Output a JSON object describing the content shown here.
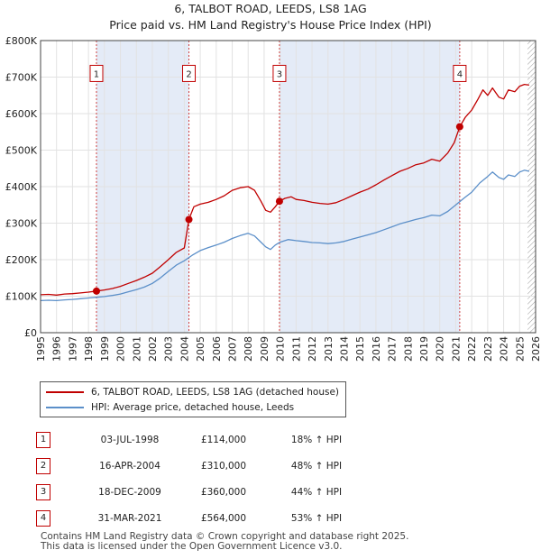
{
  "title_line1": "6, TALBOT ROAD, LEEDS, LS8 1AG",
  "title_line2": "Price paid vs. HM Land Registry's House Price Index (HPI)",
  "chart_data": {
    "type": "line",
    "title": "6, TALBOT ROAD, LEEDS, LS8 1AG — Price paid vs. HM Land Registry's House Price Index (HPI)",
    "xlim": [
      1995,
      2026
    ],
    "ylim": [
      0,
      800000
    ],
    "x_ticks": [
      "1995",
      "1996",
      "1997",
      "1998",
      "1999",
      "2000",
      "2001",
      "2002",
      "2003",
      "2004",
      "2005",
      "2006",
      "2007",
      "2008",
      "2009",
      "2010",
      "2011",
      "2012",
      "2013",
      "2014",
      "2015",
      "2016",
      "2017",
      "2018",
      "2019",
      "2020",
      "2021",
      "2022",
      "2023",
      "2024",
      "2025",
      "2026"
    ],
    "y_ticks": [
      {
        "value": 0,
        "label": "£0"
      },
      {
        "value": 100000,
        "label": "£100K"
      },
      {
        "value": 200000,
        "label": "£200K"
      },
      {
        "value": 300000,
        "label": "£300K"
      },
      {
        "value": 400000,
        "label": "£400K"
      },
      {
        "value": 500000,
        "label": "£500K"
      },
      {
        "value": 600000,
        "label": "£600K"
      },
      {
        "value": 700000,
        "label": "£700K"
      },
      {
        "value": 800000,
        "label": "£800K"
      }
    ],
    "grid": true,
    "shaded_periods": [
      [
        1998.5,
        2004.29
      ],
      [
        2009.96,
        2021.25
      ]
    ],
    "future_hatch_from": 2025.5,
    "series": [
      {
        "name": "6, TALBOT ROAD, LEEDS, LS8 1AG (detached house)",
        "color": "#c00000",
        "points": [
          [
            1995,
            104000
          ],
          [
            1995.5,
            105000
          ],
          [
            1996,
            103000
          ],
          [
            1996.5,
            106000
          ],
          [
            1997,
            107000
          ],
          [
            1997.5,
            109000
          ],
          [
            1998,
            111000
          ],
          [
            1998.5,
            114000
          ],
          [
            1999,
            117000
          ],
          [
            1999.5,
            121000
          ],
          [
            2000,
            127000
          ],
          [
            2000.5,
            135000
          ],
          [
            2001,
            143000
          ],
          [
            2001.5,
            152000
          ],
          [
            2002,
            163000
          ],
          [
            2002.5,
            181000
          ],
          [
            2003,
            200000
          ],
          [
            2003.5,
            220000
          ],
          [
            2004,
            232000
          ],
          [
            2004.29,
            310000
          ],
          [
            2004.6,
            345000
          ],
          [
            2005,
            352000
          ],
          [
            2005.5,
            357000
          ],
          [
            2006,
            365000
          ],
          [
            2006.5,
            375000
          ],
          [
            2007,
            390000
          ],
          [
            2007.5,
            397000
          ],
          [
            2008,
            400000
          ],
          [
            2008.4,
            390000
          ],
          [
            2008.8,
            360000
          ],
          [
            2009.1,
            335000
          ],
          [
            2009.4,
            330000
          ],
          [
            2009.7,
            345000
          ],
          [
            2009.96,
            360000
          ],
          [
            2010.3,
            368000
          ],
          [
            2010.7,
            372000
          ],
          [
            2011,
            365000
          ],
          [
            2011.5,
            362000
          ],
          [
            2012,
            357000
          ],
          [
            2012.5,
            354000
          ],
          [
            2013,
            352000
          ],
          [
            2013.5,
            356000
          ],
          [
            2014,
            365000
          ],
          [
            2014.5,
            375000
          ],
          [
            2015,
            385000
          ],
          [
            2015.5,
            393000
          ],
          [
            2016,
            405000
          ],
          [
            2016.5,
            418000
          ],
          [
            2017,
            430000
          ],
          [
            2017.5,
            442000
          ],
          [
            2018,
            450000
          ],
          [
            2018.5,
            460000
          ],
          [
            2019,
            465000
          ],
          [
            2019.5,
            475000
          ],
          [
            2020,
            470000
          ],
          [
            2020.5,
            492000
          ],
          [
            2020.9,
            520000
          ],
          [
            2021.25,
            564000
          ],
          [
            2021.6,
            590000
          ],
          [
            2022,
            610000
          ],
          [
            2022.4,
            640000
          ],
          [
            2022.7,
            665000
          ],
          [
            2023,
            650000
          ],
          [
            2023.3,
            670000
          ],
          [
            2023.7,
            645000
          ],
          [
            2024,
            640000
          ],
          [
            2024.3,
            665000
          ],
          [
            2024.7,
            660000
          ],
          [
            2025,
            675000
          ],
          [
            2025.3,
            680000
          ],
          [
            2025.6,
            678000
          ]
        ]
      },
      {
        "name": "HPI: Average price, detached house, Leeds",
        "color": "#5b8fc9",
        "points": [
          [
            1995,
            88000
          ],
          [
            1995.5,
            89000
          ],
          [
            1996,
            88000
          ],
          [
            1996.5,
            90000
          ],
          [
            1997,
            91000
          ],
          [
            1997.5,
            93000
          ],
          [
            1998,
            95000
          ],
          [
            1998.5,
            97000
          ],
          [
            1999,
            99000
          ],
          [
            1999.5,
            102000
          ],
          [
            2000,
            106000
          ],
          [
            2000.5,
            112000
          ],
          [
            2001,
            118000
          ],
          [
            2001.5,
            125000
          ],
          [
            2002,
            135000
          ],
          [
            2002.5,
            150000
          ],
          [
            2003,
            168000
          ],
          [
            2003.5,
            185000
          ],
          [
            2004,
            197000
          ],
          [
            2004.5,
            212000
          ],
          [
            2005,
            225000
          ],
          [
            2005.5,
            233000
          ],
          [
            2006,
            240000
          ],
          [
            2006.5,
            248000
          ],
          [
            2007,
            258000
          ],
          [
            2007.5,
            266000
          ],
          [
            2008,
            272000
          ],
          [
            2008.4,
            265000
          ],
          [
            2008.8,
            248000
          ],
          [
            2009.1,
            235000
          ],
          [
            2009.4,
            228000
          ],
          [
            2009.7,
            240000
          ],
          [
            2010,
            248000
          ],
          [
            2010.5,
            255000
          ],
          [
            2011,
            252000
          ],
          [
            2011.5,
            250000
          ],
          [
            2012,
            247000
          ],
          [
            2012.5,
            246000
          ],
          [
            2013,
            244000
          ],
          [
            2013.5,
            246000
          ],
          [
            2014,
            250000
          ],
          [
            2014.5,
            256000
          ],
          [
            2015,
            262000
          ],
          [
            2015.5,
            268000
          ],
          [
            2016,
            274000
          ],
          [
            2016.5,
            282000
          ],
          [
            2017,
            290000
          ],
          [
            2017.5,
            298000
          ],
          [
            2018,
            304000
          ],
          [
            2018.5,
            310000
          ],
          [
            2019,
            315000
          ],
          [
            2019.5,
            322000
          ],
          [
            2020,
            320000
          ],
          [
            2020.5,
            332000
          ],
          [
            2021,
            350000
          ],
          [
            2021.5,
            368000
          ],
          [
            2022,
            385000
          ],
          [
            2022.5,
            410000
          ],
          [
            2023,
            428000
          ],
          [
            2023.3,
            440000
          ],
          [
            2023.7,
            425000
          ],
          [
            2024,
            420000
          ],
          [
            2024.3,
            432000
          ],
          [
            2024.7,
            428000
          ],
          [
            2025,
            440000
          ],
          [
            2025.3,
            445000
          ],
          [
            2025.6,
            442000
          ]
        ]
      }
    ],
    "sales": [
      {
        "label": "1",
        "x": 1998.5,
        "price": 114000
      },
      {
        "label": "2",
        "x": 2004.29,
        "price": 310000
      },
      {
        "label": "3",
        "x": 2009.96,
        "price": 360000
      },
      {
        "label": "4",
        "x": 2021.25,
        "price": 564000
      }
    ],
    "marker_label_value": 710000
  },
  "legend": {
    "property_label": "6, TALBOT ROAD, LEEDS, LS8 1AG (detached house)",
    "hpi_label": "HPI: Average price, detached house, Leeds"
  },
  "table": [
    {
      "num": "1",
      "date": "03-JUL-1998",
      "price": "£114,000",
      "hpi": "18% ↑ HPI"
    },
    {
      "num": "2",
      "date": "16-APR-2004",
      "price": "£310,000",
      "hpi": "48% ↑ HPI"
    },
    {
      "num": "3",
      "date": "18-DEC-2009",
      "price": "£360,000",
      "hpi": "44% ↑ HPI"
    },
    {
      "num": "4",
      "date": "31-MAR-2021",
      "price": "£564,000",
      "hpi": "53% ↑ HPI"
    }
  ],
  "footer_line1": "Contains HM Land Registry data © Crown copyright and database right 2025.",
  "footer_line2": "This data is licensed under the Open Government Licence v3.0."
}
